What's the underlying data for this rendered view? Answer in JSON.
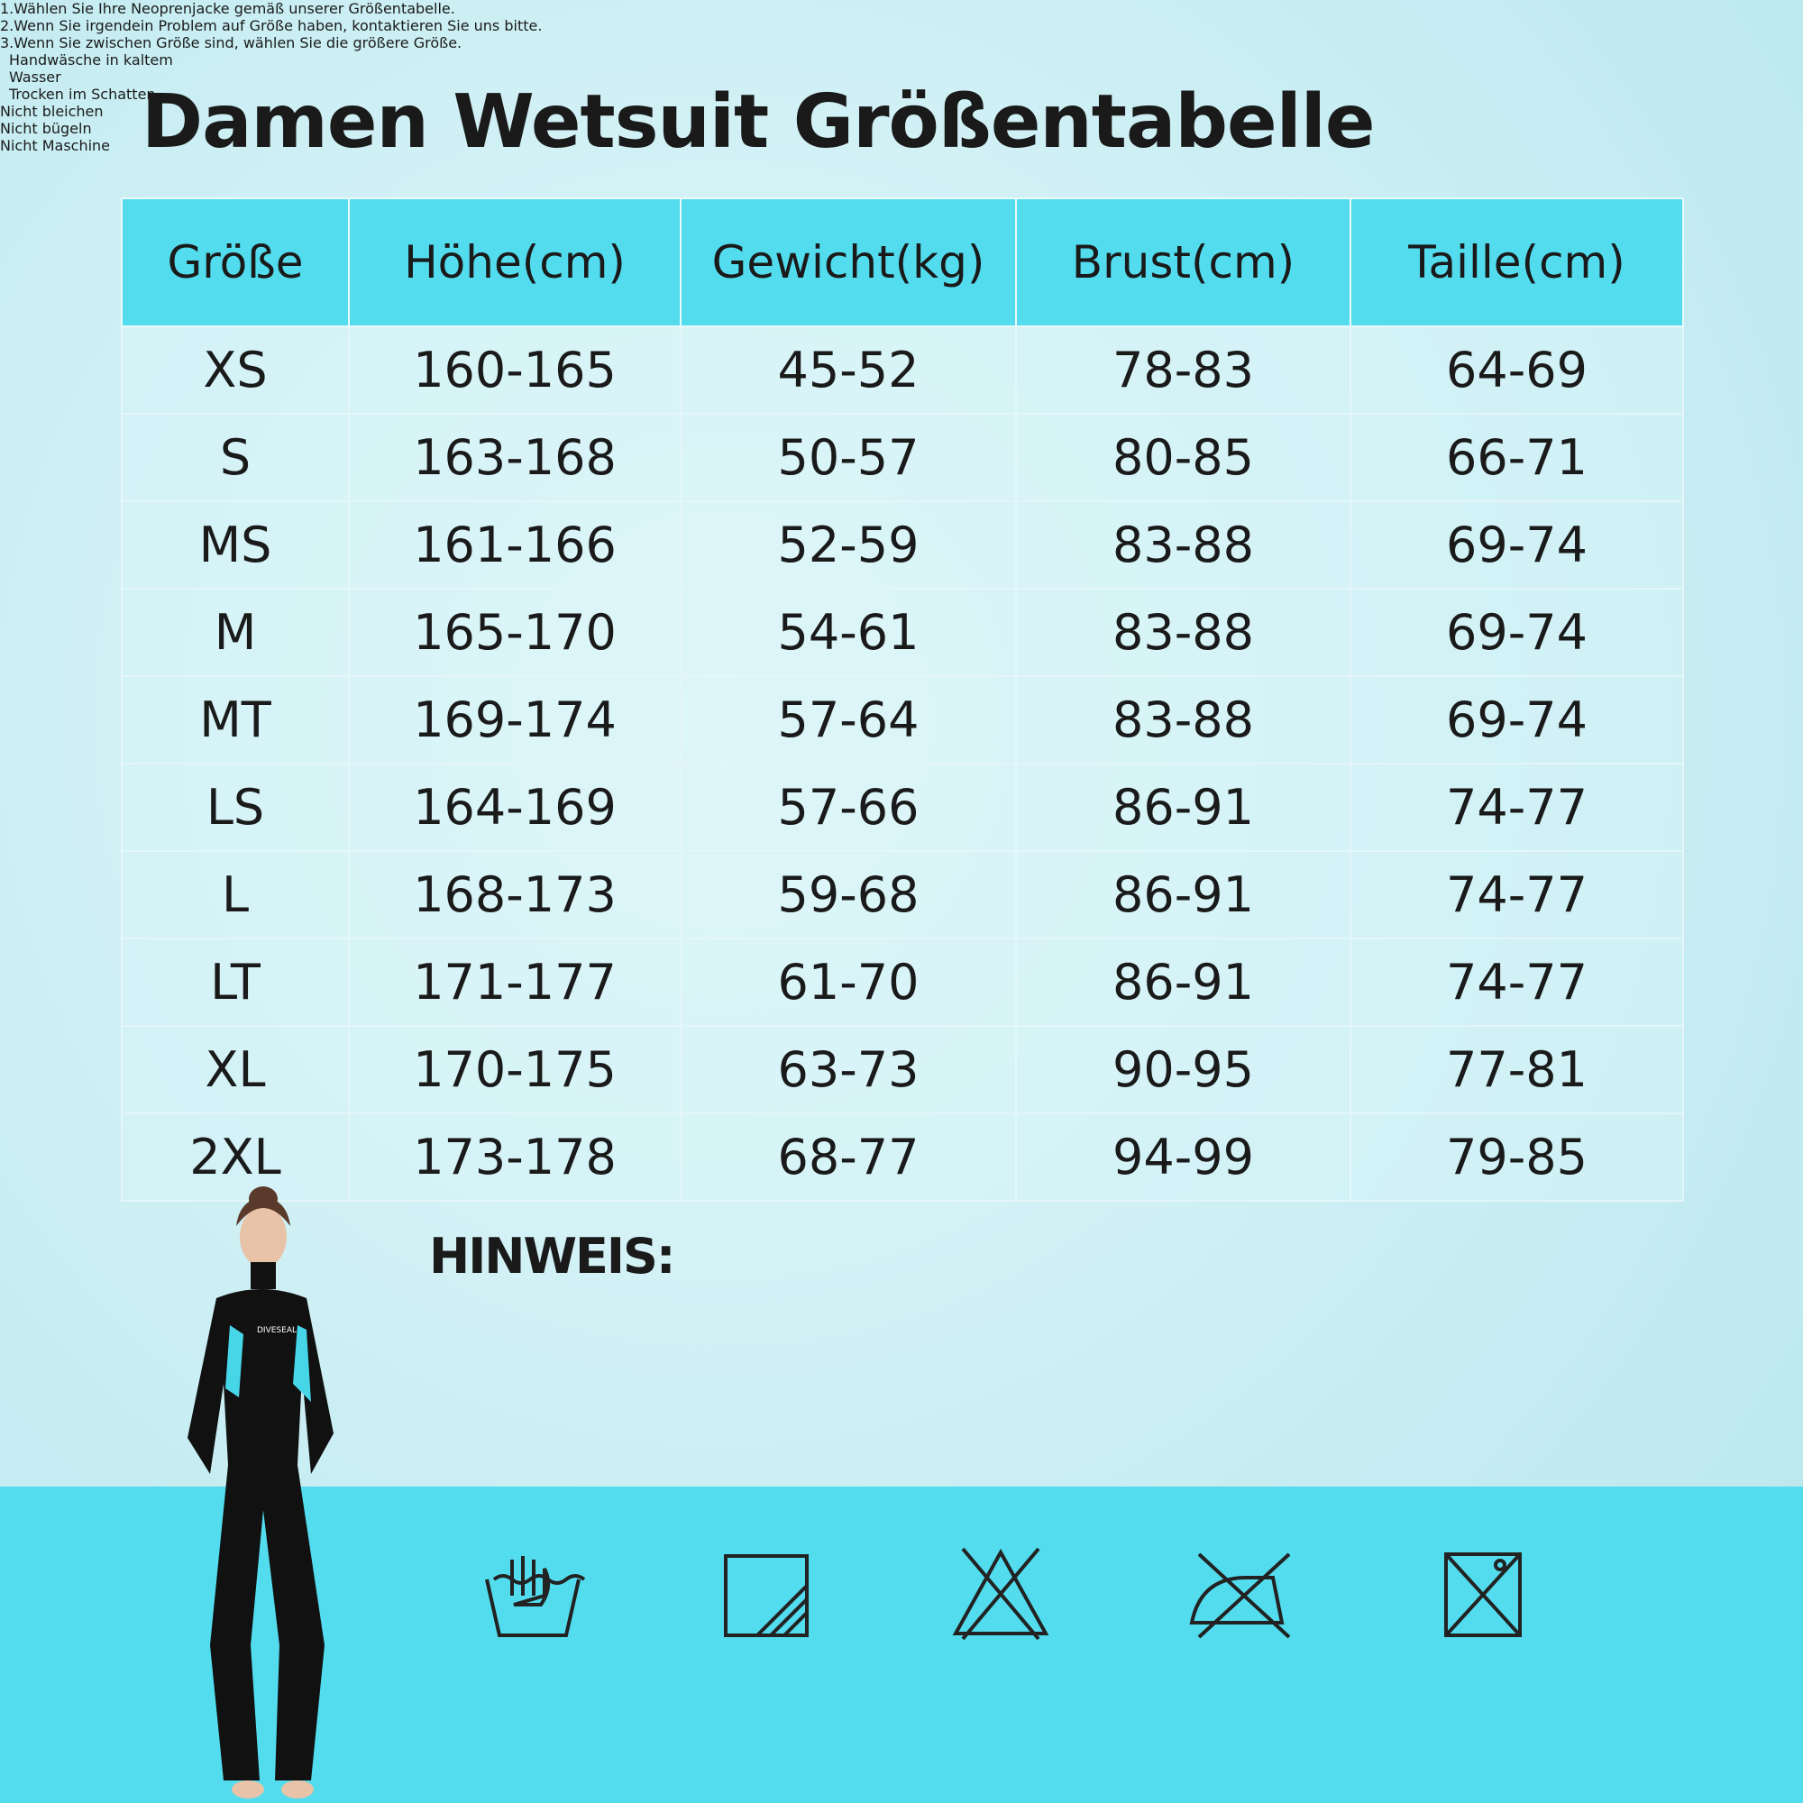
{
  "header": {
    "title": "Damen Wetsuit Größentabelle"
  },
  "table": {
    "columns": [
      "Größe",
      "Höhe(cm)",
      "Gewicht(kg)",
      "Brust(cm)",
      "Taille(cm)"
    ],
    "rows": [
      [
        "XS",
        "160-165",
        "45-52",
        "78-83",
        "64-69"
      ],
      [
        "S",
        "163-168",
        "50-57",
        "80-85",
        "66-71"
      ],
      [
        "MS",
        "161-166",
        "52-59",
        "83-88",
        "69-74"
      ],
      [
        "M",
        "165-170",
        "54-61",
        "83-88",
        "69-74"
      ],
      [
        "MT",
        "169-174",
        "57-64",
        "83-88",
        "69-74"
      ],
      [
        "LS",
        "164-169",
        "57-66",
        "86-91",
        "74-77"
      ],
      [
        "L",
        "168-173",
        "59-68",
        "86-91",
        "74-77"
      ],
      [
        "LT",
        "171-177",
        "61-70",
        "86-91",
        "74-77"
      ],
      [
        "XL",
        "170-175",
        "63-73",
        "90-95",
        "77-81"
      ],
      [
        "2XL",
        "173-178",
        "68-77",
        "94-99",
        "79-85"
      ]
    ]
  },
  "notes": {
    "heading": "HINWEIS:",
    "items": [
      "1.Wählen Sie Ihre Neoprenjacke gemäß unserer Größentabelle.",
      "2.Wenn Sie irgendein Problem auf Größe haben, kontaktieren Sie uns bitte.",
      "3.Wenn Sie zwischen Größe sind, wählen Sie die größere Größe."
    ]
  },
  "care": [
    "Handwäsche in kaltem Wasser",
    "Trocken im Schatten",
    "Nicht bleichen",
    "Nicht bügeln",
    "Nicht Maschine"
  ],
  "brand": "DIVESEAL"
}
